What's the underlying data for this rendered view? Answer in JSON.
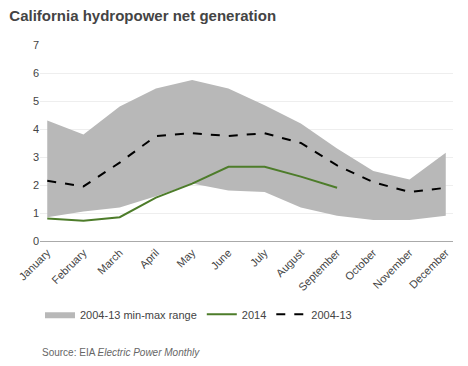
{
  "chart_data": {
    "type": "line",
    "title": "California hydropower net generation",
    "categories": [
      "January",
      "February",
      "March",
      "April",
      "May",
      "June",
      "July",
      "August",
      "September",
      "October",
      "November",
      "December"
    ],
    "series": [
      {
        "name": "2004-13 min-max range",
        "type": "range",
        "color": "#b8b8b8",
        "low": [
          0.85,
          1.05,
          1.2,
          1.6,
          2.05,
          1.8,
          1.75,
          1.2,
          0.9,
          0.75,
          0.75,
          0.9
        ],
        "high": [
          4.3,
          3.8,
          4.8,
          5.45,
          5.75,
          5.45,
          4.85,
          4.2,
          3.3,
          2.5,
          2.2,
          3.15
        ]
      },
      {
        "name": "2014",
        "type": "line",
        "color": "#4d7c2a",
        "line_style": "solid",
        "values": [
          0.8,
          0.72,
          0.85,
          1.55,
          2.05,
          2.65,
          2.65,
          2.3,
          1.9,
          null,
          null,
          null
        ]
      },
      {
        "name": "2004-13",
        "type": "line",
        "color": "#000000",
        "line_style": "dashed",
        "values": [
          2.15,
          1.95,
          2.8,
          3.75,
          3.85,
          3.75,
          3.85,
          3.5,
          2.7,
          2.1,
          1.75,
          1.9
        ]
      }
    ],
    "ylim": [
      0,
      7
    ],
    "yticks": [
      0,
      1,
      2,
      3,
      4,
      5,
      6,
      7
    ],
    "grid": true,
    "legend": "bottom",
    "annotations": [
      {
        "text": "Source: EIA ",
        "style": "normal"
      },
      {
        "text": "Electric Power Monthly",
        "style": "italic"
      }
    ]
  }
}
